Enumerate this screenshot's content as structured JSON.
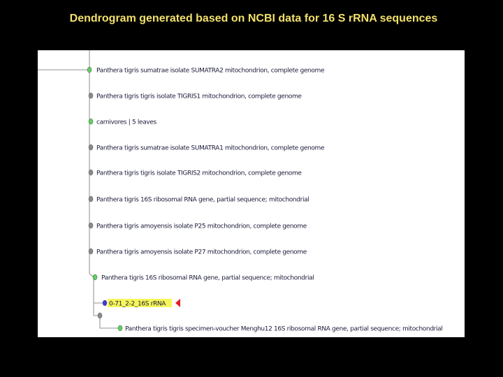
{
  "header": {
    "title": "Dendrogram generated based on NCBI data for 16 S rRNA sequences"
  },
  "nodes": [
    {
      "label": "Panthera tigris sumatrae isolate SUMATRA2 mitochondrion, complete genome"
    },
    {
      "label": "Panthera tigris tigris isolate TIGRIS1 mitochondrion, complete genome"
    },
    {
      "label": "carnivores | 5 leaves"
    },
    {
      "label": "Panthera tigris sumatrae isolate SUMATRA1 mitochondrion, complete genome"
    },
    {
      "label": "Panthera tigris tigris isolate TIGRIS2 mitochondrion, complete genome"
    },
    {
      "label": "Panthera tigris 16S ribosomal RNA gene, partial sequence; mitochondrial"
    },
    {
      "label": "Panthera tigris amoyensis isolate P25 mitochondrion, complete genome"
    },
    {
      "label": "Panthera tigris amoyensis isolate P27 mitochondrion, complete genome"
    },
    {
      "label": "Panthera tigris 16S ribosomal RNA gene, partial sequence; mitochondrial"
    },
    {
      "label": "0-71_2-2_16S rRNA"
    },
    {
      "label": "Panthera tigris tigris specimen-voucher Menghu12 16S ribosomal RNA gene, partial sequence; mitochondrial"
    }
  ]
}
